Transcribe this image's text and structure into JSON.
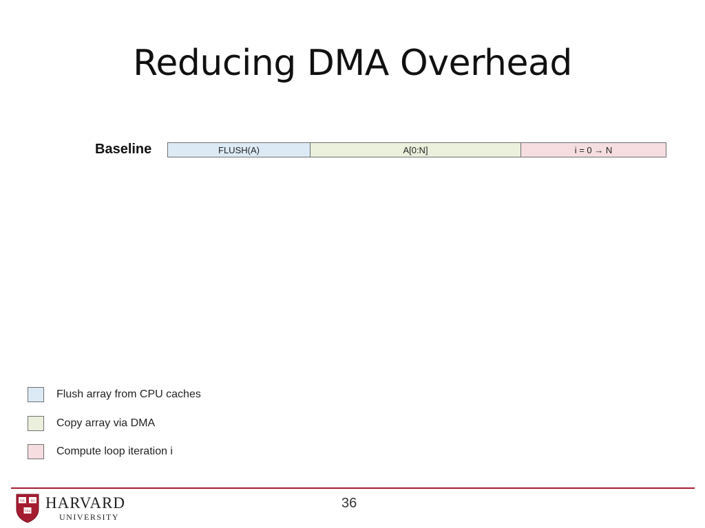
{
  "slide": {
    "title": "Reducing DMA Overhead",
    "page_number": "36"
  },
  "timeline": {
    "label": "Baseline",
    "segments": [
      {
        "label": "FLUSH(A)",
        "color": "#dceaf5"
      },
      {
        "label": "A[0:N]",
        "color": "#eaf0dc"
      },
      {
        "label": "i = 0 → N",
        "color": "#f5dde0"
      }
    ]
  },
  "legend": [
    {
      "label": "Flush array from CPU caches",
      "color": "#dceaf5"
    },
    {
      "label": "Copy array via DMA",
      "color": "#eaf0dc"
    },
    {
      "label": "Compute loop iteration i",
      "color": "#f5dde0"
    }
  ],
  "footer": {
    "logo_top": "HARVARD",
    "logo_bottom": "UNIVERSITY",
    "shield_text": [
      "VE",
      "RI",
      "TAS"
    ],
    "accent_color": "#a51c30"
  }
}
